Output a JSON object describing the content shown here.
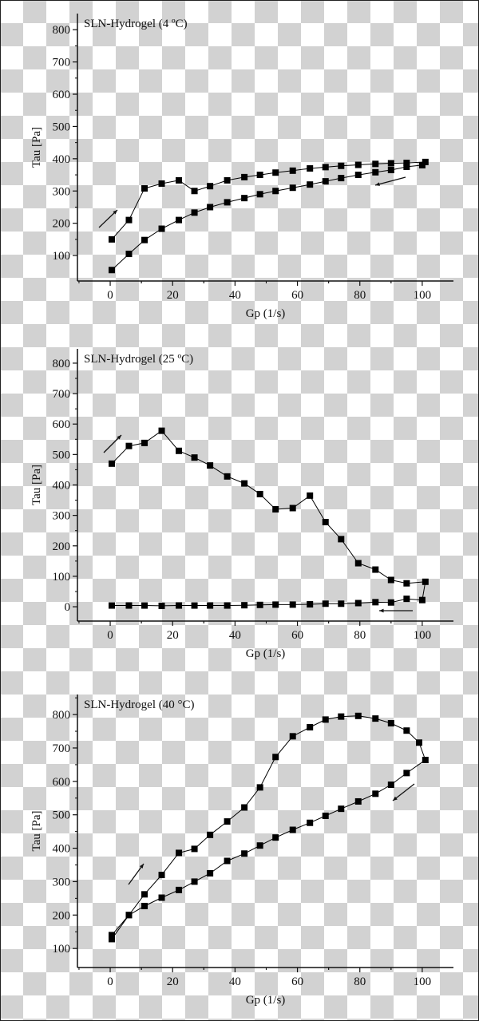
{
  "chart_data": [
    {
      "type": "line",
      "title": "SLN-Hydrogel (4 ºC)",
      "xlabel": "Gp (1/s)",
      "ylabel": "Tau [Pa]",
      "xticks": [
        0,
        20,
        40,
        60,
        80,
        100
      ],
      "yticks": [
        100,
        200,
        300,
        400,
        500,
        600,
        700,
        800
      ],
      "xlim": [
        -10.5,
        110
      ],
      "ylim": [
        21,
        850
      ],
      "grid": false,
      "marker": "square",
      "color": "#000000",
      "direction_arrows": [
        "up-curve increasing shear rate",
        "down-curve decreasing shear rate"
      ],
      "series": [
        {
          "x": [
            0.5,
            6,
            11,
            16.5,
            22,
            27,
            32,
            37.5,
            43,
            48,
            53,
            58.5,
            64,
            69,
            74,
            79.5,
            85,
            90,
            95,
            101,
            100,
            95,
            90,
            85,
            79.5,
            74,
            69,
            64,
            58.5,
            53,
            48,
            43,
            37.5,
            32,
            27,
            22,
            16.5,
            11,
            6,
            0.5
          ],
          "y": [
            150,
            210,
            308,
            323,
            333,
            300,
            315,
            333,
            343,
            350,
            357,
            363,
            370,
            374,
            378,
            381,
            384,
            386,
            387,
            390,
            380,
            375,
            365,
            358,
            350,
            340,
            330,
            320,
            310,
            300,
            290,
            278,
            265,
            250,
            233,
            210,
            183,
            148,
            105,
            55
          ]
        }
      ]
    },
    {
      "type": "line",
      "title": "SLN-Hydrogel (25 ºC)",
      "xlabel": "Gp (1/s)",
      "ylabel": "Tau [Pa]",
      "xticks": [
        0,
        20,
        40,
        60,
        80,
        100
      ],
      "yticks": [
        0,
        100,
        200,
        300,
        400,
        500,
        600,
        700,
        800
      ],
      "xlim": [
        -10.5,
        110
      ],
      "ylim": [
        -47,
        847
      ],
      "grid": false,
      "marker": "square",
      "color": "#000000",
      "series": [
        {
          "x": [
            0.5,
            6,
            11,
            16.5,
            22,
            27,
            32,
            37.5,
            43,
            48,
            53,
            58.5,
            64,
            69,
            74,
            79.5,
            85,
            90,
            95,
            101,
            100,
            95,
            90,
            85,
            79.5,
            74,
            69,
            64,
            58.5,
            53,
            48,
            43,
            37.5,
            32,
            27,
            22,
            16.5,
            11,
            6,
            0.5
          ],
          "y": [
            470,
            528,
            538,
            578,
            512,
            490,
            464,
            428,
            405,
            370,
            320,
            324,
            365,
            278,
            222,
            143,
            122,
            88,
            77,
            82,
            22,
            26,
            14,
            15,
            12,
            10,
            10,
            8,
            7,
            7,
            6,
            5,
            4,
            4,
            4,
            4,
            3,
            4,
            4,
            4
          ]
        }
      ]
    },
    {
      "type": "line",
      "title": "SLN-Hydrogel (40 °C)",
      "xlabel": "Gp (1/s)",
      "ylabel": "Tau [Pa]",
      "xticks": [
        0,
        20,
        40,
        60,
        80,
        100
      ],
      "yticks": [
        100,
        200,
        300,
        400,
        500,
        600,
        700,
        800
      ],
      "xlim": [
        -10.5,
        110
      ],
      "ylim": [
        43,
        860
      ],
      "grid": false,
      "marker": "square",
      "color": "#000000",
      "series": [
        {
          "x": [
            0.5,
            6,
            11,
            16.5,
            22,
            27,
            32,
            37.5,
            43,
            48,
            53,
            58.5,
            64,
            69,
            74,
            79.5,
            85,
            90,
            95,
            99,
            101,
            95,
            90,
            85,
            79.5,
            74,
            69,
            64,
            58.5,
            53,
            48,
            43,
            37.5,
            32,
            27,
            22,
            16.5,
            11,
            6,
            0.5
          ],
          "y": [
            140,
            200,
            262,
            320,
            386,
            398,
            440,
            480,
            522,
            582,
            673,
            735,
            762,
            785,
            794,
            796,
            788,
            774,
            752,
            716,
            664,
            625,
            590,
            563,
            540,
            518,
            497,
            476,
            455,
            432,
            408,
            384,
            362,
            325,
            300,
            275,
            252,
            227,
            200,
            128
          ]
        }
      ]
    }
  ]
}
